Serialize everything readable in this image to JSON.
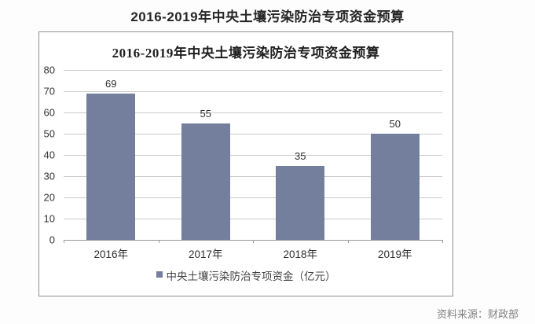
{
  "page": {
    "title": "2016-2019年中央土壤污染防治专项资金预算",
    "source": "资料来源：财政部"
  },
  "chart_data": {
    "type": "bar",
    "title": "2016-2019年中央土壤污染防治专项资金预算",
    "categories": [
      "2016年",
      "2017年",
      "2018年",
      "2019年"
    ],
    "values": [
      69,
      55,
      35,
      50
    ],
    "legend": "中央土壤污染防治专项资金（亿元）",
    "xlabel": "",
    "ylabel": "",
    "ylim": [
      0,
      80
    ],
    "ytick_step": 10,
    "grid": true,
    "legend_position": "bottom",
    "value_labels": true,
    "bar_color": "#747F9E"
  }
}
